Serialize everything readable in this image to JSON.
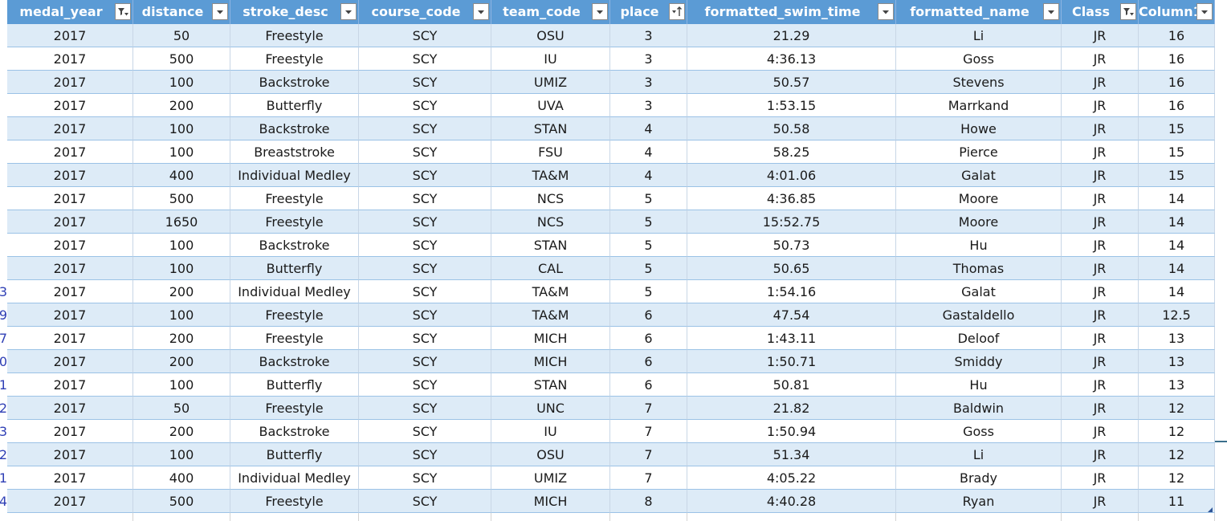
{
  "columns": [
    {
      "key": "medal_year",
      "label": "medal_year",
      "filter": "filtered"
    },
    {
      "key": "distance",
      "label": "distance",
      "filter": "dropdown"
    },
    {
      "key": "stroke_desc",
      "label": "stroke_desc",
      "filter": "dropdown"
    },
    {
      "key": "course_code",
      "label": "course_code",
      "filter": "dropdown"
    },
    {
      "key": "team_code",
      "label": "team_code",
      "filter": "dropdown"
    },
    {
      "key": "place",
      "label": "place",
      "filter": "sorted-asc"
    },
    {
      "key": "formatted_swim_time",
      "label": "formatted_swim_time",
      "filter": "dropdown"
    },
    {
      "key": "formatted_name",
      "label": "formatted_name",
      "filter": "dropdown"
    },
    {
      "key": "class",
      "label": "Class",
      "filter": "filtered"
    },
    {
      "key": "column1",
      "label": "Column1",
      "filter": "dropdown"
    }
  ],
  "row_numbers": [
    "",
    "",
    "",
    "",
    "",
    "",
    "",
    "",
    "",
    "",
    "",
    "3",
    "9",
    "7",
    "0",
    "1",
    "2",
    "3",
    "2",
    "1",
    "4"
  ],
  "rows": [
    [
      "2017",
      "50",
      "Freestyle",
      "SCY",
      "OSU",
      "3",
      "21.29",
      "Li",
      "JR",
      "16"
    ],
    [
      "2017",
      "500",
      "Freestyle",
      "SCY",
      "IU",
      "3",
      "4:36.13",
      "Goss",
      "JR",
      "16"
    ],
    [
      "2017",
      "100",
      "Backstroke",
      "SCY",
      "UMIZ",
      "3",
      "50.57",
      "Stevens",
      "JR",
      "16"
    ],
    [
      "2017",
      "200",
      "Butterfly",
      "SCY",
      "UVA",
      "3",
      "1:53.15",
      "Marrkand",
      "JR",
      "16"
    ],
    [
      "2017",
      "100",
      "Backstroke",
      "SCY",
      "STAN",
      "4",
      "50.58",
      "Howe",
      "JR",
      "15"
    ],
    [
      "2017",
      "100",
      "Breaststroke",
      "SCY",
      "FSU",
      "4",
      "58.25",
      "Pierce",
      "JR",
      "15"
    ],
    [
      "2017",
      "400",
      "Individual Medley",
      "SCY",
      "TA&M",
      "4",
      "4:01.06",
      "Galat",
      "JR",
      "15"
    ],
    [
      "2017",
      "500",
      "Freestyle",
      "SCY",
      "NCS",
      "5",
      "4:36.85",
      "Moore",
      "JR",
      "14"
    ],
    [
      "2017",
      "1650",
      "Freestyle",
      "SCY",
      "NCS",
      "5",
      "15:52.75",
      "Moore",
      "JR",
      "14"
    ],
    [
      "2017",
      "100",
      "Backstroke",
      "SCY",
      "STAN",
      "5",
      "50.73",
      "Hu",
      "JR",
      "14"
    ],
    [
      "2017",
      "100",
      "Butterfly",
      "SCY",
      "CAL",
      "5",
      "50.65",
      "Thomas",
      "JR",
      "14"
    ],
    [
      "2017",
      "200",
      "Individual Medley",
      "SCY",
      "TA&M",
      "5",
      "1:54.16",
      "Galat",
      "JR",
      "14"
    ],
    [
      "2017",
      "100",
      "Freestyle",
      "SCY",
      "TA&M",
      "6",
      "47.54",
      "Gastaldello",
      "JR",
      "12.5"
    ],
    [
      "2017",
      "200",
      "Freestyle",
      "SCY",
      "MICH",
      "6",
      "1:43.11",
      "Deloof",
      "JR",
      "13"
    ],
    [
      "2017",
      "200",
      "Backstroke",
      "SCY",
      "MICH",
      "6",
      "1:50.71",
      "Smiddy",
      "JR",
      "13"
    ],
    [
      "2017",
      "100",
      "Butterfly",
      "SCY",
      "STAN",
      "6",
      "50.81",
      "Hu",
      "JR",
      "13"
    ],
    [
      "2017",
      "50",
      "Freestyle",
      "SCY",
      "UNC",
      "7",
      "21.82",
      "Baldwin",
      "JR",
      "12"
    ],
    [
      "2017",
      "200",
      "Backstroke",
      "SCY",
      "IU",
      "7",
      "1:50.94",
      "Goss",
      "JR",
      "12"
    ],
    [
      "2017",
      "100",
      "Butterfly",
      "SCY",
      "OSU",
      "7",
      "51.34",
      "Li",
      "JR",
      "12"
    ],
    [
      "2017",
      "400",
      "Individual Medley",
      "SCY",
      "UMIZ",
      "7",
      "4:05.22",
      "Brady",
      "JR",
      "12"
    ],
    [
      "2017",
      "500",
      "Freestyle",
      "SCY",
      "MICH",
      "8",
      "4:40.28",
      "Ryan",
      "JR",
      "11"
    ]
  ],
  "colors": {
    "header_bg": "#5b9bd5",
    "band_bg": "#ddebf7",
    "header_text": "#ffffff",
    "row_number_text": "#2f3fb5"
  }
}
